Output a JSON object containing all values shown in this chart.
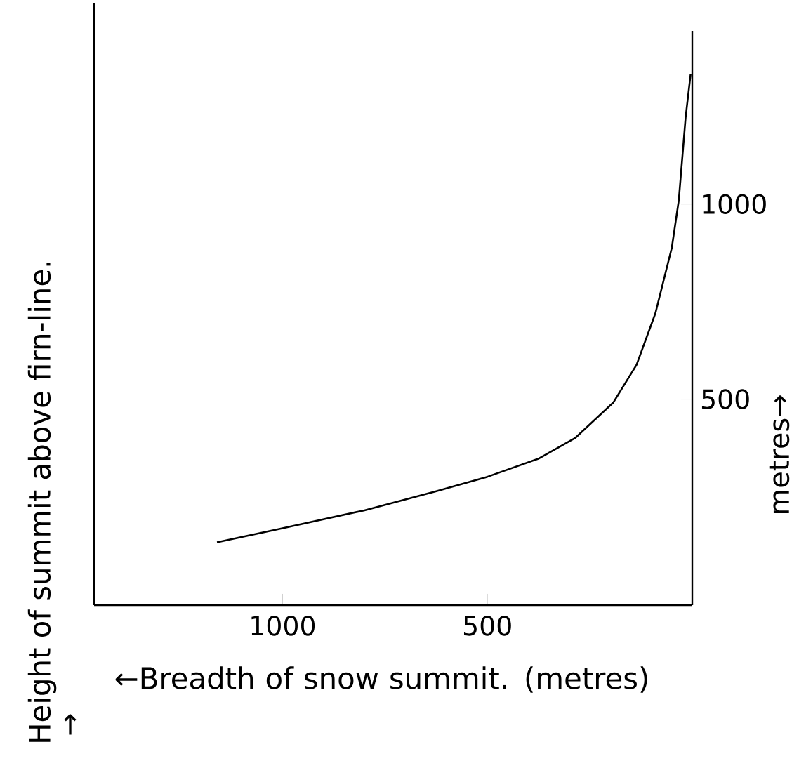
{
  "chart_data": {
    "type": "line",
    "xlabel": "←Breadth of snow summit. (metres)",
    "ylabel": "Height of summit above firn-line.",
    "annotations": [
      "metres→",
      "↑"
    ],
    "x": [
      1160,
      1000,
      800,
      628,
      500,
      376,
      285,
      193,
      136,
      90,
      50,
      33,
      16,
      4
    ],
    "values": [
      133,
      169,
      215,
      263,
      301,
      347,
      401,
      491,
      588,
      720,
      888,
      1009,
      1225,
      1333
    ],
    "color": "#000000",
    "xlim": [
      1460,
      0
    ],
    "ylim": [
      -28,
      1444
    ],
    "xticks": [
      1000,
      500
    ],
    "yticks": [
      500,
      1000
    ]
  }
}
